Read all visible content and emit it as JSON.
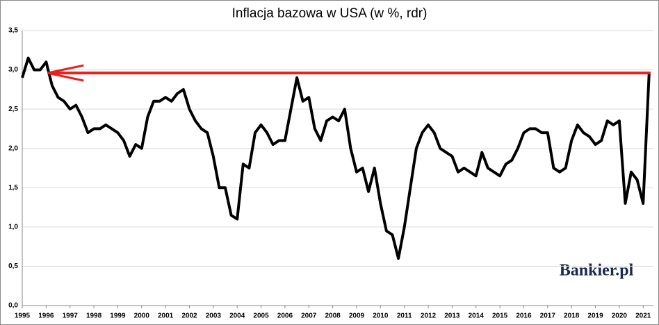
{
  "chart_data": {
    "type": "line",
    "title": "Inflacja bazowa w USA (w %, rdr)",
    "logo": "Bankier.pl",
    "x": [
      1995,
      1995.25,
      1995.5,
      1995.75,
      1996,
      1996.25,
      1996.5,
      1996.75,
      1997,
      1997.25,
      1997.5,
      1997.75,
      1998,
      1998.25,
      1998.5,
      1998.75,
      1999,
      1999.25,
      1999.5,
      1999.75,
      2000,
      2000.25,
      2000.5,
      2000.75,
      2001,
      2001.25,
      2001.5,
      2001.75,
      2002,
      2002.25,
      2002.5,
      2002.75,
      2003,
      2003.25,
      2003.5,
      2003.75,
      2004,
      2004.25,
      2004.5,
      2004.75,
      2005,
      2005.25,
      2005.5,
      2005.75,
      2006,
      2006.25,
      2006.5,
      2006.75,
      2007,
      2007.25,
      2007.5,
      2007.75,
      2008,
      2008.25,
      2008.5,
      2008.75,
      2009,
      2009.25,
      2009.5,
      2009.75,
      2010,
      2010.25,
      2010.5,
      2010.75,
      2011,
      2011.25,
      2011.5,
      2011.75,
      2012,
      2012.25,
      2012.5,
      2012.75,
      2013,
      2013.25,
      2013.5,
      2013.75,
      2014,
      2014.25,
      2014.5,
      2014.75,
      2015,
      2015.25,
      2015.5,
      2015.75,
      2016,
      2016.25,
      2016.5,
      2016.75,
      2017,
      2017.25,
      2017.5,
      2017.75,
      2018,
      2018.25,
      2018.5,
      2018.75,
      2019,
      2019.25,
      2019.5,
      2019.75,
      2020,
      2020.25,
      2020.5,
      2020.75,
      2021,
      2021.25
    ],
    "series": [
      {
        "color": "#000000",
        "values": [
          2.9,
          3.15,
          3.0,
          3.0,
          3.1,
          2.8,
          2.65,
          2.6,
          2.5,
          2.55,
          2.4,
          2.2,
          2.25,
          2.25,
          2.3,
          2.25,
          2.2,
          2.1,
          1.9,
          2.05,
          2.0,
          2.4,
          2.6,
          2.6,
          2.65,
          2.6,
          2.7,
          2.75,
          2.5,
          2.35,
          2.25,
          2.2,
          1.9,
          1.5,
          1.5,
          1.15,
          1.1,
          1.8,
          1.75,
          2.2,
          2.3,
          2.2,
          2.05,
          2.1,
          2.1,
          2.5,
          2.9,
          2.6,
          2.65,
          2.25,
          2.1,
          2.35,
          2.4,
          2.35,
          2.5,
          2.0,
          1.7,
          1.75,
          1.45,
          1.75,
          1.3,
          0.95,
          0.9,
          0.6,
          1.0,
          1.5,
          2.0,
          2.2,
          2.3,
          2.2,
          2.0,
          1.95,
          1.9,
          1.7,
          1.75,
          1.7,
          1.65,
          1.95,
          1.75,
          1.7,
          1.65,
          1.8,
          1.85,
          2.0,
          2.2,
          2.25,
          2.25,
          2.2,
          2.2,
          1.75,
          1.7,
          1.75,
          2.1,
          2.3,
          2.2,
          2.15,
          2.05,
          2.1,
          2.35,
          2.3,
          2.35,
          1.3,
          1.7,
          1.6,
          1.3,
          2.96
        ]
      }
    ],
    "hline": {
      "value": 2.96,
      "color": "#e8211f"
    },
    "xlim": [
      1995,
      2021.43
    ],
    "xticks": [
      1995,
      1996,
      1997,
      1998,
      1999,
      2000,
      2001,
      2002,
      2003,
      2004,
      2005,
      2006,
      2007,
      2008,
      2009,
      2010,
      2011,
      2012,
      2013,
      2014,
      2015,
      2016,
      2017,
      2018,
      2019,
      2020,
      2021
    ],
    "ylim": [
      0,
      3.5
    ],
    "yticks": [
      {
        "value": 0,
        "label": "0,0"
      },
      {
        "value": 0.5,
        "label": "0,5"
      },
      {
        "value": 1,
        "label": "1,0"
      },
      {
        "value": 1.5,
        "label": "1,5"
      },
      {
        "value": 2,
        "label": "2,0"
      },
      {
        "value": 2.5,
        "label": "2,5"
      },
      {
        "value": 3,
        "label": "3,0"
      },
      {
        "value": 3.5,
        "label": "3,5"
      }
    ],
    "grid": true
  }
}
